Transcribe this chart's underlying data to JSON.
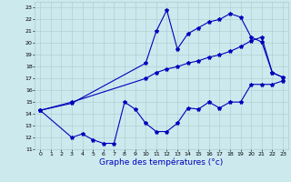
{
  "bg_color": "#cce9ee",
  "grid_color": "#aacccc",
  "line_color": "#0000bb",
  "line_width": 0.8,
  "marker": "*",
  "marker_size": 3,
  "xlabel": "Graphe des températures (°c)",
  "xlabel_fontsize": 6.5,
  "xlabel_color": "#0000bb",
  "xlim": [
    -0.5,
    23.5
  ],
  "ylim": [
    11,
    23.5
  ],
  "ytick_labels": [
    "11",
    "12",
    "13",
    "14",
    "15",
    "16",
    "17",
    "18",
    "19",
    "20",
    "21",
    "22",
    "23"
  ],
  "ytick_vals": [
    11,
    12,
    13,
    14,
    15,
    16,
    17,
    18,
    19,
    20,
    21,
    22,
    23
  ],
  "xtick_vals": [
    0,
    1,
    2,
    3,
    4,
    5,
    6,
    7,
    8,
    9,
    10,
    11,
    12,
    13,
    14,
    15,
    16,
    17,
    18,
    19,
    20,
    21,
    22,
    23
  ],
  "tick_fontsize": 4.5,
  "series": [
    {
      "x": [
        0,
        3,
        10,
        11,
        12,
        13,
        14,
        15,
        16,
        17,
        18,
        19,
        20,
        21,
        22,
        23
      ],
      "y": [
        14.3,
        14.9,
        18.3,
        21.0,
        22.8,
        19.5,
        20.8,
        21.3,
        21.8,
        22.0,
        22.5,
        22.2,
        20.5,
        20.1,
        17.5,
        17.1
      ]
    },
    {
      "x": [
        0,
        3,
        10,
        11,
        12,
        13,
        14,
        15,
        16,
        17,
        18,
        19,
        20,
        21,
        22,
        23
      ],
      "y": [
        14.3,
        15.0,
        17.0,
        17.5,
        17.8,
        18.0,
        18.3,
        18.5,
        18.8,
        19.0,
        19.3,
        19.7,
        20.2,
        20.5,
        17.5,
        17.1
      ]
    },
    {
      "x": [
        0,
        3,
        4,
        5,
        6,
        7,
        8,
        9,
        10,
        11,
        12,
        13,
        14,
        15,
        16,
        17,
        18,
        19,
        20,
        21,
        22,
        23
      ],
      "y": [
        14.3,
        12.0,
        12.3,
        11.8,
        11.5,
        11.5,
        15.0,
        14.4,
        13.2,
        12.5,
        12.5,
        13.2,
        14.5,
        14.4,
        15.0,
        14.5,
        15.0,
        15.0,
        16.5,
        16.5,
        16.5,
        16.8
      ]
    }
  ]
}
